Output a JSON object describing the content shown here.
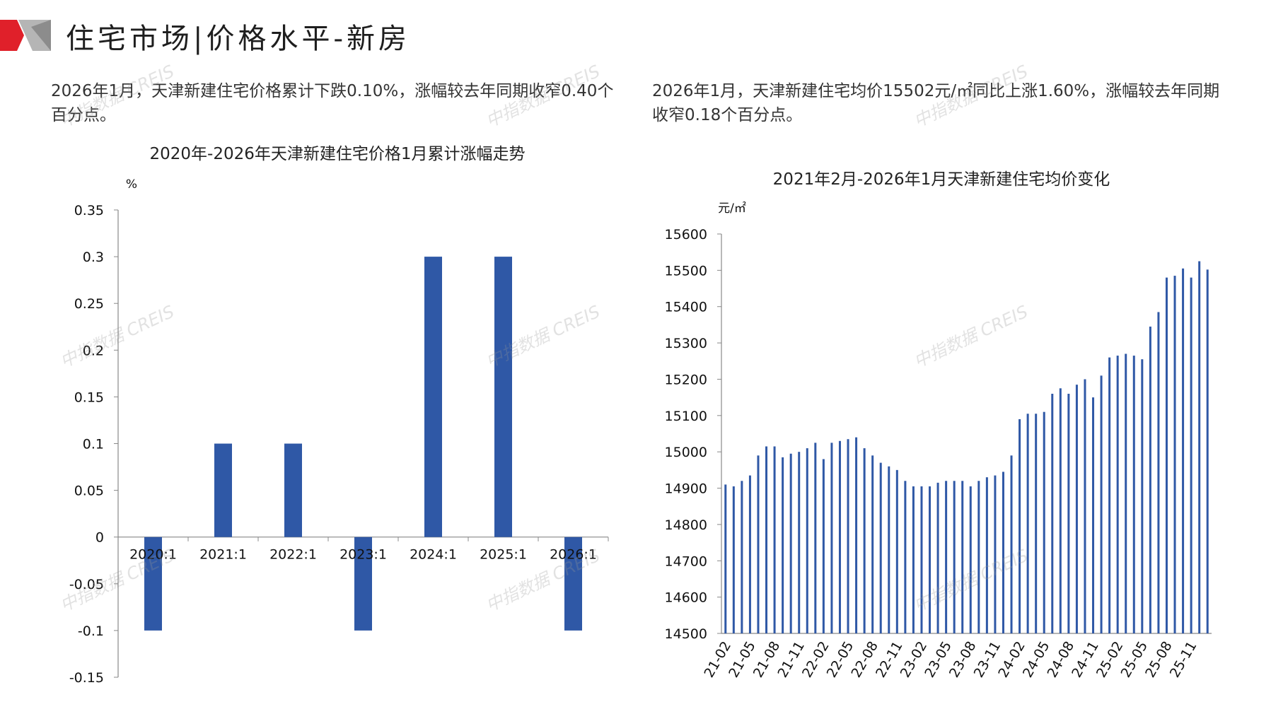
{
  "header": {
    "title": "住宅市场|价格水平-新房"
  },
  "summary_left": "2026年1月，天津新建住宅价格累计下跌0.10%，涨幅较去年同期收窄0.40个百分点。",
  "summary_right": "2026年1月，天津新建住宅均价15502元/㎡同比上涨1.60%，涨幅较去年同期收窄0.18个百分点。",
  "watermark": "中指数据 CREIS",
  "colors": {
    "bar": "#2f58a6",
    "accent_red": "#e0202a",
    "accent_grey": "#b5b5b5"
  },
  "chart_data": [
    {
      "type": "bar",
      "title": "2020年-2026年天津新建住宅价格1月累计涨幅走势",
      "ylabel": "%",
      "categories": [
        "2020:1",
        "2021:1",
        "2022:1",
        "2023:1",
        "2024:1",
        "2025:1",
        "2026:1"
      ],
      "values": [
        -0.1,
        0.1,
        0.1,
        -0.1,
        0.3,
        0.3,
        -0.1
      ],
      "ylim": [
        -0.15,
        0.35
      ],
      "yticks": [
        0.35,
        0.3,
        0.25,
        0.2,
        0.15,
        0.1,
        0.05,
        0,
        -0.05,
        -0.1,
        -0.15
      ],
      "ytick_labels": [
        "0.35",
        "0.3",
        "0.25",
        "0.2",
        "0.15",
        "0.1",
        "0.05",
        "0",
        "-0.05",
        "-0.1",
        "-0.15"
      ],
      "grid": false,
      "legend": "none"
    },
    {
      "type": "bar",
      "title": "2021年2月-2026年1月天津新建住宅均价变化",
      "ylabel": "元/㎡",
      "x_tick_labels": [
        "21-02",
        "21-05",
        "21-08",
        "21-11",
        "22-02",
        "22-05",
        "22-08",
        "22-11",
        "23-02",
        "23-05",
        "23-08",
        "23-11",
        "24-02",
        "24-05",
        "24-08",
        "24-11",
        "25-02",
        "25-05",
        "25-08",
        "25-11"
      ],
      "categories": [
        "21-02",
        "21-03",
        "21-04",
        "21-05",
        "21-06",
        "21-07",
        "21-08",
        "21-09",
        "21-10",
        "21-11",
        "21-12",
        "22-01",
        "22-02",
        "22-03",
        "22-04",
        "22-05",
        "22-06",
        "22-07",
        "22-08",
        "22-09",
        "22-10",
        "22-11",
        "22-12",
        "23-01",
        "23-02",
        "23-03",
        "23-04",
        "23-05",
        "23-06",
        "23-07",
        "23-08",
        "23-09",
        "23-10",
        "23-11",
        "23-12",
        "24-01",
        "24-02",
        "24-03",
        "24-04",
        "24-05",
        "24-06",
        "24-07",
        "24-08",
        "24-09",
        "24-10",
        "24-11",
        "24-12",
        "25-01",
        "25-02",
        "25-03",
        "25-04",
        "25-05",
        "25-06",
        "25-07",
        "25-08",
        "25-09",
        "25-10",
        "25-11",
        "25-12",
        "26-01"
      ],
      "values": [
        14910,
        14905,
        14920,
        14935,
        14990,
        15015,
        15015,
        14985,
        14995,
        15000,
        15010,
        15025,
        14980,
        15025,
        15030,
        15035,
        15040,
        15010,
        14990,
        14970,
        14960,
        14950,
        14920,
        14905,
        14905,
        14905,
        14915,
        14920,
        14920,
        14920,
        14905,
        14920,
        14930,
        14935,
        14945,
        14990,
        15090,
        15105,
        15105,
        15110,
        15160,
        15175,
        15160,
        15185,
        15200,
        15150,
        15210,
        15260,
        15265,
        15270,
        15265,
        15255,
        15345,
        15385,
        15480,
        15485,
        15505,
        15480,
        15525,
        15502
      ],
      "ylim": [
        14500,
        15600
      ],
      "yticks": [
        15600,
        15500,
        15400,
        15300,
        15200,
        15100,
        15000,
        14900,
        14800,
        14700,
        14600,
        14500
      ],
      "grid": false,
      "legend": "none"
    }
  ]
}
